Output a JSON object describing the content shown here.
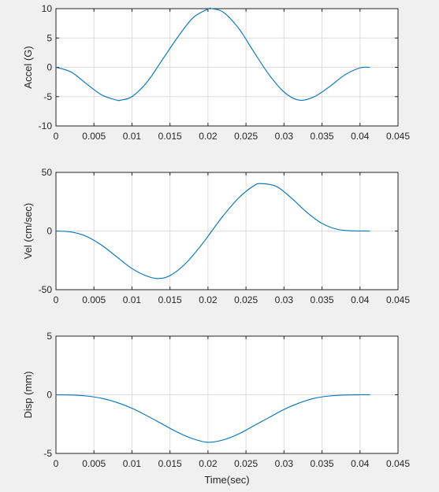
{
  "colors": {
    "figure_background": "#f0f0f0",
    "axes_background": "#ffffff",
    "series_line": "#0072bd",
    "grid": "#dcdcdc",
    "axis_line": "#262626"
  },
  "chart_data": [
    {
      "type": "line",
      "title": "",
      "xlabel": "",
      "ylabel": "Accel (G)",
      "xlim": [
        0,
        0.045
      ],
      "ylim": [
        -10,
        10
      ],
      "x_ticks": [
        0,
        0.005,
        0.01,
        0.015,
        0.02,
        0.025,
        0.03,
        0.035,
        0.04,
        0.045
      ],
      "x_tick_labels": [
        "0",
        "0.005",
        "0.01",
        "0.015",
        "0.02",
        "0.025",
        "0.03",
        "0.035",
        "0.04",
        "0.045"
      ],
      "y_ticks": [
        -10,
        -5,
        0,
        5,
        10
      ],
      "y_tick_labels": [
        "-10",
        "-5",
        "0",
        "5",
        "10"
      ],
      "grid": true,
      "series": [
        {
          "x": [
            0,
            0.002,
            0.004,
            0.006,
            0.008,
            0.0085,
            0.01,
            0.012,
            0.014,
            0.016,
            0.018,
            0.02,
            0.0205,
            0.022,
            0.024,
            0.026,
            0.028,
            0.03,
            0.032,
            0.034,
            0.036,
            0.038,
            0.04,
            0.0413
          ],
          "y": [
            0,
            -0.8,
            -2.8,
            -4.7,
            -5.6,
            -5.6,
            -5.0,
            -2.5,
            1.3,
            5.1,
            8.4,
            9.95,
            10,
            9.4,
            6.7,
            2.7,
            -1.2,
            -4.2,
            -5.6,
            -5.0,
            -3.3,
            -1.3,
            -0.1,
            0
          ]
        }
      ]
    },
    {
      "type": "line",
      "title": "",
      "xlabel": "",
      "ylabel": "Vel (cm/sec)",
      "xlim": [
        0,
        0.045
      ],
      "ylim": [
        -50,
        50
      ],
      "x_ticks": [
        0,
        0.005,
        0.01,
        0.015,
        0.02,
        0.025,
        0.03,
        0.035,
        0.04,
        0.045
      ],
      "x_tick_labels": [
        "0",
        "0.005",
        "0.01",
        "0.015",
        "0.02",
        "0.025",
        "0.03",
        "0.035",
        "0.04",
        "0.045"
      ],
      "y_ticks": [
        -50,
        0,
        50
      ],
      "y_tick_labels": [
        "-50",
        "0",
        "50"
      ],
      "grid": true,
      "series": [
        {
          "x": [
            0,
            0.002,
            0.004,
            0.006,
            0.008,
            0.01,
            0.012,
            0.0135,
            0.015,
            0.017,
            0.019,
            0.0205,
            0.022,
            0.024,
            0.026,
            0.027,
            0.029,
            0.031,
            0.033,
            0.035,
            0.037,
            0.039,
            0.0413
          ],
          "y": [
            0,
            -0.8,
            -4.5,
            -12,
            -22,
            -32,
            -38.5,
            -40.5,
            -38,
            -28,
            -13,
            0,
            13,
            28,
            38.5,
            40.5,
            38,
            28,
            16,
            6.5,
            1.5,
            0.2,
            0
          ]
        }
      ]
    },
    {
      "type": "line",
      "title": "",
      "xlabel": "Time(sec)",
      "ylabel": "Disp (mm)",
      "xlim": [
        0,
        0.045
      ],
      "ylim": [
        -5,
        5
      ],
      "x_ticks": [
        0,
        0.005,
        0.01,
        0.015,
        0.02,
        0.025,
        0.03,
        0.035,
        0.04,
        0.045
      ],
      "x_tick_labels": [
        "0",
        "0.005",
        "0.01",
        "0.015",
        "0.02",
        "0.025",
        "0.03",
        "0.035",
        "0.04",
        "0.045"
      ],
      "y_ticks": [
        -5,
        0,
        5
      ],
      "y_tick_labels": [
        "-5",
        "0",
        "5"
      ],
      "grid": true,
      "series": [
        {
          "x": [
            0,
            0.002,
            0.004,
            0.006,
            0.008,
            0.01,
            0.012,
            0.014,
            0.016,
            0.018,
            0.02,
            0.022,
            0.024,
            0.026,
            0.028,
            0.03,
            0.032,
            0.034,
            0.036,
            0.038,
            0.04,
            0.0413
          ],
          "y": [
            0,
            -0.02,
            -0.1,
            -0.3,
            -0.65,
            -1.15,
            -1.8,
            -2.5,
            -3.2,
            -3.75,
            -4.05,
            -3.85,
            -3.35,
            -2.65,
            -1.95,
            -1.25,
            -0.7,
            -0.3,
            -0.1,
            -0.02,
            0,
            0
          ]
        }
      ]
    }
  ]
}
